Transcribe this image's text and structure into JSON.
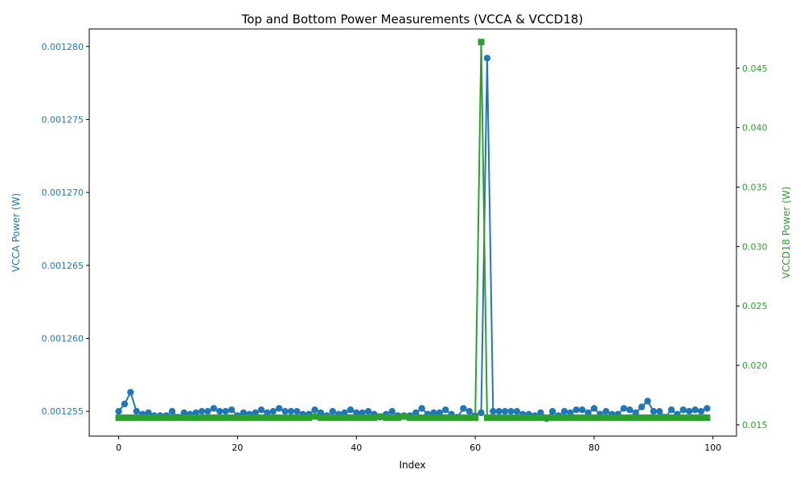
{
  "chart_data": {
    "type": "line",
    "title": "Top and Bottom Power Measurements (VCCA & VCCD18)",
    "xlabel": "Index",
    "x_ticks": [
      "0",
      "20",
      "40",
      "60",
      "80",
      "100"
    ],
    "x_tick_values": [
      0,
      20,
      40,
      60,
      80,
      100
    ],
    "xlim": [
      -4.95,
      103.95
    ],
    "grid": false,
    "legend": "none",
    "left_axis": {
      "label": "VCCA Power (W)",
      "color": "#1f77b4",
      "ylim": [
        0.0012533,
        0.0012812
      ],
      "ticks": [
        "0.001255",
        "0.001260",
        "0.001265",
        "0.001270",
        "0.001275",
        "0.001280"
      ],
      "tick_values": [
        0.001255,
        0.00126,
        0.001265,
        0.00127,
        0.001275,
        0.00128
      ]
    },
    "right_axis": {
      "label": "VCCD18 Power (W)",
      "color": "#2ca02c",
      "ylim": [
        0.01405,
        0.0483
      ],
      "ticks": [
        "0.015",
        "0.020",
        "0.025",
        "0.030",
        "0.035",
        "0.040",
        "0.045"
      ],
      "tick_values": [
        0.015,
        0.02,
        0.025,
        0.03,
        0.035,
        0.04,
        0.045
      ]
    },
    "series": [
      {
        "axis": "left",
        "color": "#1f77b4",
        "marker": "circle",
        "x": [
          0,
          1,
          2,
          3,
          4,
          5,
          6,
          7,
          8,
          9,
          10,
          11,
          12,
          13,
          14,
          15,
          16,
          17,
          18,
          19,
          20,
          21,
          22,
          23,
          24,
          25,
          26,
          27,
          28,
          29,
          30,
          31,
          32,
          33,
          34,
          35,
          36,
          37,
          38,
          39,
          40,
          41,
          42,
          43,
          44,
          45,
          46,
          47,
          48,
          49,
          50,
          51,
          52,
          53,
          54,
          55,
          56,
          57,
          58,
          59,
          60,
          61,
          62,
          63,
          64,
          65,
          66,
          67,
          68,
          69,
          70,
          71,
          72,
          73,
          74,
          75,
          76,
          77,
          78,
          79,
          80,
          81,
          82,
          83,
          84,
          85,
          86,
          87,
          88,
          89,
          90,
          91,
          92,
          93,
          94,
          95,
          96,
          97,
          98,
          99
        ],
        "values": [
          0.001255,
          0.0012555,
          0.0012563,
          0.001255,
          0.0012548,
          0.0012549,
          0.0012547,
          0.0012547,
          0.0012547,
          0.001255,
          0.0012546,
          0.0012549,
          0.0012548,
          0.0012549,
          0.001255,
          0.001255,
          0.0012552,
          0.001255,
          0.001255,
          0.0012551,
          0.0012547,
          0.0012549,
          0.0012548,
          0.0012549,
          0.0012551,
          0.0012549,
          0.001255,
          0.0012552,
          0.001255,
          0.001255,
          0.001255,
          0.0012548,
          0.0012548,
          0.0012551,
          0.0012549,
          0.0012547,
          0.001255,
          0.0012548,
          0.0012549,
          0.0012551,
          0.0012549,
          0.0012549,
          0.001255,
          0.0012548,
          0.0012546,
          0.0012548,
          0.001255,
          0.0012547,
          0.0012547,
          0.0012547,
          0.0012549,
          0.0012552,
          0.0012548,
          0.0012549,
          0.0012549,
          0.0012551,
          0.0012548,
          0.0012546,
          0.0012552,
          0.001255,
          0.0012547,
          0.0012549,
          0.0012792,
          0.001255,
          0.001255,
          0.001255,
          0.001255,
          0.001255,
          0.0012548,
          0.0012548,
          0.0012547,
          0.0012549,
          0.0012545,
          0.001255,
          0.0012547,
          0.001255,
          0.0012549,
          0.0012551,
          0.0012551,
          0.0012549,
          0.0012552,
          0.0012548,
          0.001255,
          0.0012548,
          0.0012548,
          0.0012552,
          0.0012551,
          0.0012549,
          0.0012553,
          0.0012557,
          0.001255,
          0.001255,
          0.0012546,
          0.0012551,
          0.0012548,
          0.0012551,
          0.001255,
          0.0012551,
          0.001255,
          0.0012552
        ]
      },
      {
        "axis": "right",
        "color": "#2ca02c",
        "marker": "square",
        "x": [
          0,
          1,
          2,
          3,
          4,
          5,
          6,
          7,
          8,
          9,
          10,
          11,
          12,
          13,
          14,
          15,
          16,
          17,
          18,
          19,
          20,
          21,
          22,
          23,
          24,
          25,
          26,
          27,
          28,
          29,
          30,
          31,
          32,
          33,
          34,
          35,
          36,
          37,
          38,
          39,
          40,
          41,
          42,
          43,
          44,
          45,
          46,
          47,
          48,
          49,
          50,
          51,
          52,
          53,
          54,
          55,
          56,
          57,
          58,
          59,
          60,
          61,
          62,
          63,
          64,
          65,
          66,
          67,
          68,
          69,
          70,
          71,
          72,
          73,
          74,
          75,
          76,
          77,
          78,
          79,
          80,
          81,
          82,
          83,
          84,
          85,
          86,
          87,
          88,
          89,
          90,
          91,
          92,
          93,
          94,
          95,
          96,
          97,
          98,
          99
        ],
        "values": [
          0.0156,
          0.0156,
          0.0156,
          0.0156,
          0.0156,
          0.0156,
          0.0156,
          0.0156,
          0.0156,
          0.0156,
          0.0156,
          0.0156,
          0.0156,
          0.0156,
          0.0156,
          0.0156,
          0.0156,
          0.0156,
          0.0156,
          0.0156,
          0.0156,
          0.0156,
          0.0156,
          0.0156,
          0.0156,
          0.0156,
          0.0156,
          0.0156,
          0.0156,
          0.0156,
          0.0156,
          0.0156,
          0.0156,
          0.0157,
          0.0156,
          0.0156,
          0.0156,
          0.0156,
          0.0156,
          0.0156,
          0.0156,
          0.0156,
          0.0156,
          0.0156,
          0.0157,
          0.0156,
          0.0156,
          0.0156,
          0.0157,
          0.0156,
          0.0156,
          0.0156,
          0.0156,
          0.0156,
          0.0156,
          0.0156,
          0.0156,
          0.0156,
          0.0156,
          0.0156,
          0.0156,
          0.0472,
          0.0156,
          0.0156,
          0.0156,
          0.0156,
          0.0156,
          0.0156,
          0.0156,
          0.0156,
          0.0156,
          0.0156,
          0.0156,
          0.0156,
          0.0156,
          0.0156,
          0.0156,
          0.0156,
          0.0156,
          0.0156,
          0.0156,
          0.0156,
          0.0156,
          0.0156,
          0.0156,
          0.0156,
          0.0156,
          0.0156,
          0.0156,
          0.0156,
          0.0156,
          0.0156,
          0.0156,
          0.0156,
          0.0156,
          0.0156,
          0.0156,
          0.0156,
          0.0156,
          0.0156
        ]
      }
    ]
  }
}
